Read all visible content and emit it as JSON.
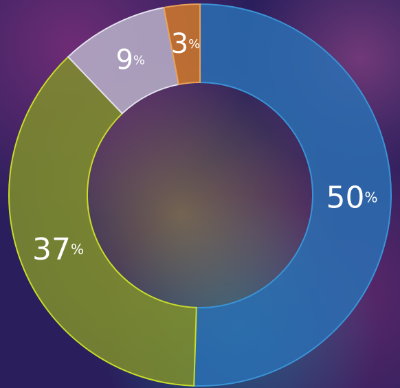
{
  "chart_data": {
    "type": "pie",
    "donut": true,
    "direction": "clockwise",
    "start_angle_deg": 0,
    "unit_suffix": "%",
    "slices": [
      {
        "value": 50,
        "label": "50",
        "color": "#2a6fb3",
        "stroke": "#3a93d6"
      },
      {
        "value": 37,
        "label": "37",
        "color": "#7f8f2c",
        "stroke": "#c8dc2a"
      },
      {
        "value": 9,
        "label": "9",
        "color": "#b9b1c9",
        "stroke": "#e4e0ee"
      },
      {
        "value": 3,
        "label": "3",
        "color": "#d07a2a",
        "stroke": "#e8a05a"
      }
    ]
  },
  "background": {
    "description_colors": [
      "#2a1f5c",
      "#6b2a6e",
      "#c2a34a",
      "#1e6e8a"
    ]
  }
}
